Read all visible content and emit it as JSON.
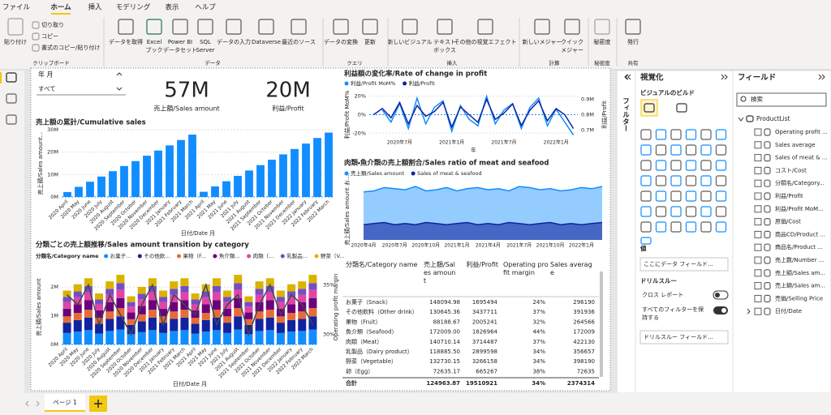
{
  "ribbon": {
    "tabs": [
      "ファイル",
      "ホーム",
      "挿入",
      "モデリング",
      "表示",
      "ヘルプ"
    ],
    "clipboard": {
      "paste": "貼り付け",
      "items": [
        "切り取り",
        "コピー",
        "書式のコピー/貼り付け"
      ]
    },
    "buttons": [
      [
        "データを取得"
      ],
      [
        "Excel",
        "ブック"
      ],
      [
        "Power BI",
        "データセット"
      ],
      [
        "SQL",
        "Server"
      ],
      [
        "データの入力"
      ],
      [
        "Dataverse"
      ],
      [
        "最近のソース"
      ],
      [
        "データの変換"
      ],
      [
        "更新"
      ],
      [
        "新しいビジュアル"
      ],
      [
        "テキスト",
        "ボックス"
      ],
      [
        "その他の視覚エフェクト"
      ],
      [
        "新しいメジャー"
      ],
      [
        "クイック",
        "メジャー"
      ],
      [
        "秘密度"
      ],
      [
        "発行"
      ]
    ],
    "groups": [
      "クリップボード",
      "データ",
      "クエリ",
      "挿入",
      "計算",
      "秘密度",
      "共有"
    ]
  },
  "slicer": {
    "title": "年 月",
    "value": "すべて"
  },
  "cards": [
    {
      "value": "57M",
      "label": "売上額/Sales amount"
    },
    {
      "value": "20M",
      "label": "利益/Profit"
    }
  ],
  "cumulative_chart": {
    "type": "bar",
    "title": "売上額の累計/Cumulative sales",
    "x_label": "日付/Date 月",
    "y_label": "売上額/Sales amount...",
    "color": "#118DFF",
    "categories": [
      "2020 April",
      "2020 May",
      "2020 June",
      "2020 July",
      "2020 August",
      "2020 September",
      "2020 October",
      "2020 November",
      "2020 December",
      "2021 January",
      "2021 February",
      "2021 March",
      "2021 April",
      "2021 May",
      "2021 June",
      "2021 July",
      "2021 August",
      "2021 September",
      "2021 October",
      "2021 November",
      "2021 December",
      "2022 January",
      "2022 February",
      "2022 March"
    ],
    "values": [
      2.2,
      4.5,
      6.8,
      9.1,
      11.5,
      13.8,
      16.0,
      18.4,
      20.7,
      23.0,
      25.4,
      27.8,
      2.3,
      4.7,
      7.0,
      9.4,
      11.8,
      14.2,
      16.6,
      19.0,
      21.4,
      23.8,
      26.3,
      28.7
    ],
    "ylim": [
      0,
      30
    ],
    "yticks": [
      {
        "value": 0,
        "label": "0M"
      },
      {
        "value": 10,
        "label": "10M"
      },
      {
        "value": 20,
        "label": "20M"
      },
      {
        "value": 30,
        "label": "30M"
      }
    ]
  },
  "profit_change_chart": {
    "type": "line",
    "title": "利益額の変化率/Rate of change in profit",
    "x_label": "年",
    "y_label": "利益/Profit MoM%",
    "y2_label": "利益/Profit",
    "categories": [
      null,
      null,
      null,
      "2020年7月",
      null,
      null,
      null,
      null,
      null,
      "2021年1月",
      null,
      null,
      null,
      null,
      null,
      "2021年7月",
      null,
      null,
      null,
      null,
      null,
      "2022年1月",
      null,
      null
    ],
    "series": [
      {
        "name": "利益/Profit MoM%",
        "color": "#118DFF",
        "values": [
          null,
          5,
          -8,
          12,
          -15,
          18,
          -10,
          8,
          15,
          -18,
          10,
          -5,
          -12,
          20,
          -10,
          5,
          12,
          -15,
          8,
          18,
          -12,
          6,
          -8,
          -22
        ]
      },
      {
        "name": "利益/Profit",
        "color": "#12239E",
        "axis": "y2",
        "values": [
          0.8,
          0.84,
          0.78,
          0.88,
          0.74,
          0.86,
          0.79,
          0.82,
          0.88,
          0.72,
          0.85,
          0.8,
          0.75,
          0.9,
          0.77,
          0.81,
          0.87,
          0.73,
          0.83,
          0.89,
          0.76,
          0.84,
          0.8,
          0.71
        ]
      }
    ],
    "ylim": [
      -25,
      25
    ],
    "yticks": [
      {
        "value": 20,
        "label": "20%"
      },
      {
        "value": 0,
        "label": "0%"
      },
      {
        "value": -20,
        "label": "-20%"
      }
    ],
    "y2lim": [
      0.65,
      0.95
    ],
    "y2ticks": [
      {
        "value": 0.9,
        "label": "0.9M"
      },
      {
        "value": 0.8,
        "label": "0.8M"
      },
      {
        "value": 0.7,
        "label": "0.7M"
      }
    ]
  },
  "sales_ratio_chart": {
    "type": "area",
    "title": "肉類・魚介類の売上額割合/Sales ratio of meat and seafood",
    "y_label": "売上額/Sales amount お...",
    "categories": [
      "2020年4月",
      null,
      null,
      "2020年7月",
      null,
      null,
      "2020年10月",
      null,
      null,
      "2021年1月",
      null,
      null,
      "2021年4月",
      null,
      null,
      "2021年7月",
      null,
      null,
      "2021年10月",
      null,
      null,
      "2022年1月",
      null,
      null
    ],
    "series": [
      {
        "name": "売上額/Sales amount",
        "color": "#118DFF",
        "values": [
          4.4,
          4.5,
          4.8,
          4.7,
          4.6,
          4.9,
          4.5,
          4.6,
          4.8,
          4.5,
          4.7,
          4.8,
          4.6,
          4.7,
          4.5,
          4.9,
          4.8,
          4.6,
          4.7,
          4.5,
          4.6,
          4.8,
          4.7,
          4.9
        ]
      },
      {
        "name": "Sales of meat & seafood",
        "color": "#12239E",
        "values": [
          1.4,
          1.5,
          1.6,
          1.4,
          1.5,
          1.4,
          1.6,
          1.5,
          1.4,
          1.5,
          1.6,
          1.4,
          1.5,
          1.4,
          1.6,
          1.5,
          1.4,
          1.5,
          1.6,
          1.4,
          1.5,
          1.4,
          1.5,
          1.6
        ]
      }
    ],
    "ylim": [
      0,
      5.5
    ]
  },
  "category_chart": {
    "type": "stacked_bar",
    "title": "分類ごとの売上額推移/Sales amount transition by category",
    "legend_title": "分類名/Category name",
    "x_label": "日付/Date 月",
    "y_label": "売上額/Sales amount",
    "y2_label": "Operating profit margin",
    "categories": [
      "2020 April",
      "2020 May",
      "2020 June",
      "2020 July",
      "2020 August",
      "2020 September",
      "2020 October",
      "2020 November",
      "2020 December",
      "2021 January",
      "2021 February",
      "2021 March",
      "2021 April",
      "2021 May",
      "2021 June",
      "2021 July",
      "2021 August",
      "2021 September",
      "2021 October",
      "2021 November",
      "2021 December",
      "2022 January",
      "2022 February",
      "2022 March"
    ],
    "series": [
      {
        "name": "お菓子...",
        "color": "#118DFF",
        "values": [
          0.4,
          0.45,
          0.5,
          0.38,
          0.47,
          0.52,
          0.36,
          0.43,
          0.5,
          0.4,
          0.47,
          0.5,
          0.38,
          0.45,
          0.5,
          0.4,
          0.52,
          0.36,
          0.47,
          0.5,
          0.4,
          0.45,
          0.47,
          0.52
        ]
      },
      {
        "name": "その他飲...",
        "color": "#12239E",
        "values": [
          0.36,
          0.4,
          0.44,
          0.34,
          0.42,
          0.46,
          0.32,
          0.38,
          0.44,
          0.36,
          0.42,
          0.44,
          0.34,
          0.4,
          0.44,
          0.36,
          0.46,
          0.32,
          0.42,
          0.44,
          0.36,
          0.4,
          0.42,
          0.46
        ]
      },
      {
        "name": "果物（F...",
        "color": "#E66C37",
        "values": [
          0.22,
          0.25,
          0.27,
          0.21,
          0.26,
          0.29,
          0.2,
          0.24,
          0.27,
          0.22,
          0.26,
          0.27,
          0.21,
          0.25,
          0.27,
          0.22,
          0.29,
          0.2,
          0.26,
          0.27,
          0.22,
          0.25,
          0.26,
          0.29
        ]
      },
      {
        "name": "魚介類...",
        "color": "#6B007B",
        "values": [
          0.27,
          0.3,
          0.33,
          0.26,
          0.32,
          0.35,
          0.24,
          0.29,
          0.33,
          0.27,
          0.32,
          0.33,
          0.26,
          0.3,
          0.33,
          0.27,
          0.35,
          0.24,
          0.32,
          0.33,
          0.27,
          0.3,
          0.32,
          0.35
        ]
      },
      {
        "name": "肉類（...",
        "color": "#E044A7",
        "values": [
          0.23,
          0.25,
          0.28,
          0.21,
          0.26,
          0.29,
          0.2,
          0.24,
          0.28,
          0.23,
          0.26,
          0.28,
          0.21,
          0.25,
          0.28,
          0.23,
          0.29,
          0.2,
          0.26,
          0.28,
          0.23,
          0.25,
          0.26,
          0.29
        ]
      },
      {
        "name": "乳製品...",
        "color": "#744EC2",
        "values": [
          0.18,
          0.2,
          0.22,
          0.17,
          0.21,
          0.23,
          0.16,
          0.19,
          0.22,
          0.18,
          0.21,
          0.22,
          0.17,
          0.2,
          0.22,
          0.18,
          0.23,
          0.16,
          0.21,
          0.22,
          0.18,
          0.2,
          0.21,
          0.23
        ]
      },
      {
        "name": "野菜（V...",
        "color": "#D9B300",
        "values": [
          0.22,
          0.25,
          0.27,
          0.21,
          0.26,
          0.29,
          0.2,
          0.24,
          0.27,
          0.22,
          0.26,
          0.27,
          0.21,
          0.25,
          0.27,
          0.22,
          0.29,
          0.2,
          0.26,
          0.27,
          0.22,
          0.25,
          0.26,
          0.29
        ]
      }
    ],
    "line": {
      "color": "#3C4A4F",
      "axis": "y2",
      "values": [
        34,
        33,
        35,
        31,
        34,
        32,
        30,
        33,
        35,
        31,
        34,
        33,
        32,
        35,
        31,
        33,
        34,
        30,
        33,
        35,
        32,
        34,
        33,
        31
      ]
    },
    "ylim": [
      0,
      2.6
    ],
    "yticks": [
      {
        "value": 0,
        "label": "0M"
      },
      {
        "value": 1,
        "label": "1M"
      },
      {
        "value": 2,
        "label": "2M"
      }
    ],
    "y2lim": [
      29,
      36.5
    ],
    "y2ticks": [
      {
        "value": 30,
        "label": "30%"
      },
      {
        "value": 35,
        "label": "35%"
      }
    ]
  },
  "table": {
    "headers": [
      "分類名/Category name",
      "売上額/Sales amount",
      "利益/Profit",
      "Operating profit margin",
      "Sales average"
    ],
    "rows": [
      [
        "お菓子（Snack）",
        "148094.98",
        "1695494",
        "24%",
        "296190"
      ],
      [
        "その他飲料（Other drink）",
        "130645.36",
        "3437711",
        "37%",
        "391936"
      ],
      [
        "果物（Fruit）",
        "88188.67",
        "2005241",
        "32%",
        "264566"
      ],
      [
        "魚介類（Seafood）",
        "172009.00",
        "1826964",
        "44%",
        "172009"
      ],
      [
        "肉類（Meat）",
        "140710.14",
        "3714487",
        "37%",
        "422130"
      ],
      [
        "乳製品（Dairy product）",
        "118885.50",
        "2899598",
        "34%",
        "356657"
      ],
      [
        "野菜（Vegetable）",
        "132730.15",
        "3266158",
        "34%",
        "398190"
      ],
      [
        "卵（Egg）",
        "72635.17",
        "665267",
        "38%",
        "72635"
      ]
    ],
    "total": [
      "合計",
      "124963.87",
      "19510921",
      "34%",
      "2374314"
    ]
  },
  "filters_pane": {
    "title": "フィルター"
  },
  "visualizations_pane": {
    "title": "視覚化",
    "subtitle": "ビジュアルのビルド",
    "values_label": "値",
    "values_placeholder": "ここにデータ フィールド...",
    "drillthrough": "ドリルスルー",
    "cross_report": "クロス レポート",
    "keep_filters": "すべてのフィルターを保持する",
    "drillthrough_placeholder": "ドリルスルー フィールド..."
  },
  "fields_pane": {
    "title": "フィールド",
    "search": "検索",
    "table": "ProductList",
    "items": [
      "Operating profit ...",
      "Sales average",
      "Sales of meat & ...",
      "コスト/Cost",
      "分類名/Category...",
      "利益/Profit",
      "利益/Profit MoM...",
      "原価/Cost",
      "商品CD/Product ...",
      "商品名/Product ...",
      "売上数/Number ...",
      "売上額/Sales am...",
      "売上額/Sales am...",
      "売価/Selling Price",
      "日付/Date"
    ]
  },
  "page_tabs": [
    "ページ 1"
  ]
}
